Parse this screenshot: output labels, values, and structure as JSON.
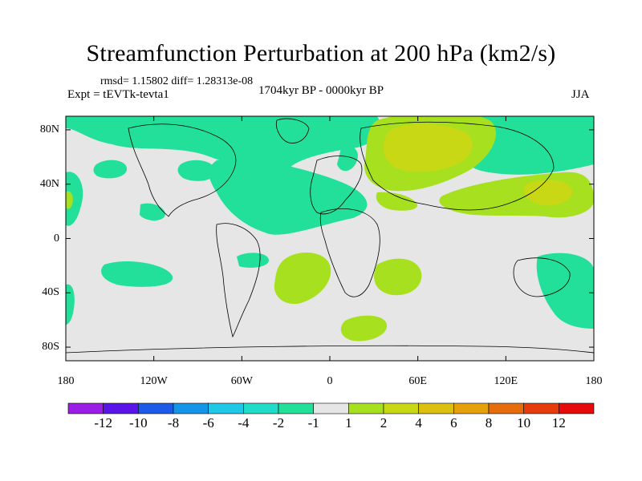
{
  "title": "Streamfunction Perturbation at 200 hPa (km2/s)",
  "stats": "rmsd= 1.15802  diff= 1.28313e-08",
  "experiment": "Expt = tEVTk-tevta1",
  "period": "1704kyr BP - 0000kyr BP",
  "season": "JJA",
  "map": {
    "projection": "cylindrical equidistant",
    "lon_range": [
      -180,
      180
    ],
    "lat_range": [
      -90,
      90
    ],
    "lon_ticks": [
      {
        "value": -180,
        "label": "180"
      },
      {
        "value": -120,
        "label": "120W"
      },
      {
        "value": -60,
        "label": "60W"
      },
      {
        "value": 0,
        "label": "0"
      },
      {
        "value": 60,
        "label": "60E"
      },
      {
        "value": 120,
        "label": "120E"
      },
      {
        "value": 180,
        "label": "180"
      }
    ],
    "lat_ticks": [
      {
        "value": 80,
        "label": "80N"
      },
      {
        "value": 40,
        "label": "40N"
      },
      {
        "value": 0,
        "label": "0"
      },
      {
        "value": -40,
        "label": "40S"
      },
      {
        "value": -80,
        "label": "80S"
      }
    ]
  },
  "colorbar": {
    "levels": [
      "-12",
      "-10",
      "-8",
      "-6",
      "-4",
      "-2",
      "-1",
      "1",
      "2",
      "4",
      "6",
      "8",
      "10",
      "12"
    ],
    "colors": [
      "#9a1ee6",
      "#5a14e8",
      "#1e5ae8",
      "#1496e8",
      "#1ec8e6",
      "#20dcc8",
      "#22e09a",
      "#e6e6e6",
      "#a6e01e",
      "#c8d814",
      "#dcc010",
      "#e6a00c",
      "#e66c0c",
      "#e63c0c",
      "#e60a0a"
    ]
  }
}
